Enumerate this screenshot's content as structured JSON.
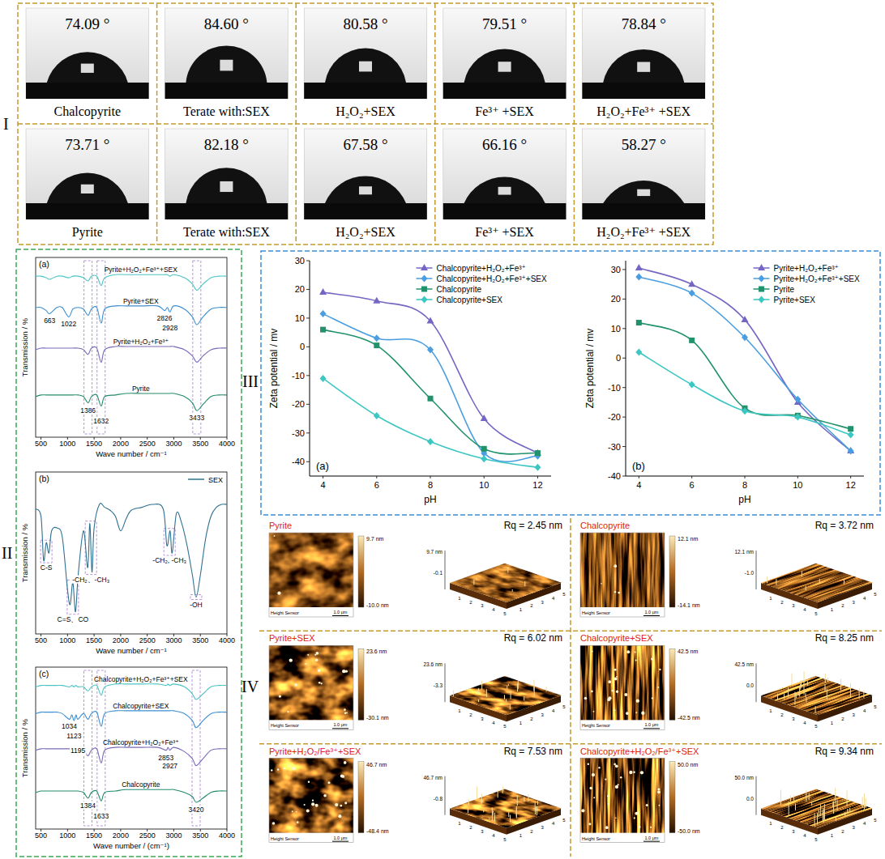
{
  "panel_labels": [
    "I",
    "II",
    "III",
    "IV"
  ],
  "contact_angle": {
    "rows": [
      [
        {
          "caption": "Chalcopyrite",
          "angle": 74.09,
          "angle_label": "74.09 °"
        },
        {
          "caption": "Terate with:SEX",
          "angle": 84.6,
          "angle_label": "84.60 °"
        },
        {
          "caption": "H₂O₂+SEX",
          "angle": 80.58,
          "angle_label": "80.58 °"
        },
        {
          "caption": "Fe³⁺ +SEX",
          "angle": 79.51,
          "angle_label": "79.51 °"
        },
        {
          "caption": "H₂O₂+Fe³⁺ +SEX",
          "angle": 78.84,
          "angle_label": "78.84 °"
        }
      ],
      [
        {
          "caption": "Pyrite",
          "angle": 73.71,
          "angle_label": "73.71 °"
        },
        {
          "caption": "Terate with:SEX",
          "angle": 82.18,
          "angle_label": "82.18 °"
        },
        {
          "caption": "H₂O₂+SEX",
          "angle": 67.58,
          "angle_label": "67.58 °"
        },
        {
          "caption": "Fe³⁺ +SEX",
          "angle": 66.16,
          "angle_label": "66.16 °"
        },
        {
          "caption": "H₂O₂+Fe³⁺ +SEX",
          "angle": 58.27,
          "angle_label": "58.27 °"
        }
      ]
    ]
  },
  "chart_data": [
    {
      "type": "line",
      "title": "(a)",
      "x_label": "Wave number / cm⁻¹",
      "y_label": "Transmission / %",
      "tick_labels": "x",
      "xlim": [
        400,
        4000
      ],
      "xticks": [
        500,
        1000,
        1500,
        2000,
        2500,
        3000,
        3500,
        4000
      ],
      "ylim": [
        -15,
        100
      ],
      "x": [
        400,
        500,
        600,
        663,
        800,
        900,
        1022,
        1100,
        1200,
        1300,
        1386,
        1450,
        1550,
        1632,
        1700,
        1900,
        2100,
        2400,
        2700,
        2826,
        2880,
        2928,
        3000,
        3200,
        3350,
        3433,
        3550,
        3700,
        3850,
        4000
      ],
      "series": [
        {
          "name": "Pyrite+H₂O₂+Fe³⁺+SEX",
          "color": "#4cc4c4",
          "values": [
            88,
            88,
            87,
            86,
            88,
            88,
            87,
            88,
            88,
            87,
            85,
            88,
            88,
            82,
            87,
            89,
            89,
            89,
            89,
            89,
            89,
            88,
            89,
            87,
            83,
            79,
            83,
            87,
            88,
            88
          ]
        },
        {
          "name": "Pyrite+SEX",
          "color": "#3d8fd1",
          "values": [
            68,
            68,
            66,
            64,
            68,
            68,
            62,
            67,
            68,
            67,
            63,
            67,
            68,
            58,
            67,
            69,
            69,
            69,
            69,
            66,
            68,
            65,
            69,
            67,
            62,
            57,
            62,
            67,
            68,
            68
          ]
        },
        {
          "name": "Pyrite+H₂O₂+Fe³⁺",
          "color": "#7a6ab8",
          "values": [
            41,
            42,
            42,
            42,
            42,
            42,
            42,
            42,
            42,
            41,
            38,
            42,
            42,
            33,
            41,
            43,
            43,
            43,
            43,
            43,
            43,
            43,
            43,
            41,
            37,
            33,
            37,
            41,
            42,
            42
          ]
        },
        {
          "name": "Pyrite",
          "color": "#238c6b",
          "values": [
            11,
            12,
            12,
            12,
            12,
            12,
            12,
            12,
            12,
            11,
            7,
            11,
            12,
            5,
            11,
            12,
            13,
            13,
            13,
            13,
            13,
            13,
            13,
            11,
            7,
            2,
            6,
            11,
            12,
            12
          ]
        }
      ],
      "annotations": [
        {
          "text": "663",
          "x": 663,
          "series": 1
        },
        {
          "text": "1022",
          "x": 1022,
          "series": 1
        },
        {
          "text": "2826",
          "x": 2826,
          "series": 1
        },
        {
          "text": "2928",
          "x": 2928,
          "series": 1
        },
        {
          "text": "1386",
          "x": 1386,
          "series": 3
        },
        {
          "text": "1632",
          "x": 1632,
          "series": 3
        },
        {
          "text": "3433",
          "x": 3433,
          "series": 3
        }
      ]
    },
    {
      "type": "line",
      "title": "(b)",
      "x_label": "Wave number / cm⁻¹",
      "y_label": "Transmission / %",
      "tick_labels": "x",
      "legend": "upper right",
      "xlim": [
        400,
        4000
      ],
      "xticks": [
        500,
        1000,
        1500,
        2000,
        2500,
        3000,
        3500,
        4000
      ],
      "ylim": [
        0,
        110
      ],
      "x": [
        400,
        500,
        550,
        600,
        650,
        700,
        800,
        900,
        1000,
        1050,
        1100,
        1150,
        1200,
        1300,
        1380,
        1420,
        1460,
        1500,
        1600,
        1700,
        1800,
        1900,
        2000,
        2100,
        2200,
        2400,
        2600,
        2800,
        2870,
        2930,
        2970,
        3050,
        3150,
        3250,
        3350,
        3420,
        3500,
        3600,
        3700,
        3800,
        3900,
        4000
      ],
      "series": [
        {
          "name": "SEX",
          "color": "#2e7191",
          "values": [
            85,
            80,
            50,
            62,
            55,
            70,
            72,
            66,
            30,
            20,
            35,
            15,
            40,
            70,
            45,
            75,
            42,
            72,
            88,
            86,
            84,
            80,
            70,
            78,
            84,
            86,
            88,
            85,
            60,
            70,
            55,
            82,
            75,
            60,
            40,
            25,
            40,
            65,
            80,
            86,
            88,
            88
          ]
        }
      ],
      "annotations": [
        {
          "text": "C-S",
          "x": 600,
          "series": 0
        },
        {
          "text": "C=S、CO",
          "x": 1100,
          "series": 0
        },
        {
          "text": "-CH₂、-CH₃",
          "x": 1440,
          "series": 0
        },
        {
          "text": "-CH₂, -CH₃",
          "x": 2920,
          "series": 0
        },
        {
          "text": "-OH",
          "x": 3420,
          "series": 0
        }
      ]
    },
    {
      "type": "line",
      "title": "(c)",
      "x_label": "Wave number / (cm⁻¹)",
      "y_label": "Transmission / %",
      "tick_labels": "x",
      "xlim": [
        400,
        4000
      ],
      "xticks": [
        500,
        1000,
        1500,
        2000,
        2500,
        3000,
        3500,
        4000
      ],
      "ylim": [
        -15,
        100
      ],
      "x": [
        400,
        500,
        600,
        700,
        800,
        900,
        1034,
        1080,
        1123,
        1160,
        1195,
        1300,
        1384,
        1450,
        1550,
        1633,
        1700,
        1900,
        2100,
        2400,
        2700,
        2853,
        2890,
        2927,
        3000,
        3200,
        3350,
        3420,
        3550,
        3700,
        3850,
        4000
      ],
      "series": [
        {
          "name": "Chalcopyrite+H₂O₂+Fe³⁺+SEX",
          "color": "#4cc4c4",
          "values": [
            86,
            87,
            87,
            87,
            87,
            87,
            86,
            87,
            86,
            87,
            86,
            86,
            83,
            86,
            87,
            80,
            86,
            88,
            88,
            88,
            88,
            87,
            88,
            87,
            88,
            86,
            81,
            77,
            81,
            86,
            87,
            87
          ]
        },
        {
          "name": "Chalcopyrite+SEX",
          "color": "#3d8fd1",
          "values": [
            67,
            68,
            68,
            68,
            68,
            67,
            63,
            66,
            62,
            66,
            63,
            67,
            63,
            67,
            68,
            58,
            67,
            69,
            69,
            69,
            69,
            69,
            69,
            69,
            69,
            67,
            62,
            57,
            62,
            67,
            68,
            68
          ]
        },
        {
          "name": "Chalcopyrite+H₂O₂+Fe³⁺",
          "color": "#7a6ab8",
          "values": [
            41,
            42,
            42,
            42,
            42,
            42,
            42,
            42,
            42,
            42,
            42,
            41,
            37,
            41,
            42,
            32,
            41,
            43,
            43,
            43,
            43,
            41,
            43,
            41,
            43,
            40,
            35,
            30,
            35,
            41,
            42,
            42
          ]
        },
        {
          "name": "Chalcopyrite",
          "color": "#238c6b",
          "values": [
            11,
            12,
            12,
            12,
            12,
            12,
            12,
            12,
            12,
            12,
            12,
            11,
            7,
            11,
            12,
            5,
            11,
            12,
            13,
            13,
            13,
            13,
            13,
            13,
            13,
            11,
            8,
            4,
            7,
            11,
            12,
            12
          ]
        }
      ],
      "annotations": [
        {
          "text": "1034",
          "x": 1034,
          "series": 1
        },
        {
          "text": "1123",
          "x": 1123,
          "series": 1
        },
        {
          "text": "1195",
          "x": 1195,
          "series": 1
        },
        {
          "text": "2853",
          "x": 2853,
          "series": 2
        },
        {
          "text": "2927",
          "x": 2927,
          "series": 2
        },
        {
          "text": "1384",
          "x": 1384,
          "series": 3
        },
        {
          "text": "1633",
          "x": 1633,
          "series": 3
        },
        {
          "text": "3420",
          "x": 3420,
          "series": 3
        }
      ]
    },
    {
      "type": "line",
      "title": "(a)",
      "x_label": "pH",
      "y_label": "Zeta potential / mv",
      "legend": "upper right",
      "xlim": [
        3.5,
        12.5
      ],
      "xticks": [
        4,
        6,
        8,
        10,
        12
      ],
      "ylim": [
        -45,
        30
      ],
      "yticks": [
        -40,
        -30,
        -20,
        -10,
        0,
        10,
        20,
        30
      ],
      "x": [
        4,
        6,
        8,
        10,
        12
      ],
      "series": [
        {
          "name": "Chalcopyrite+H₂O₂+Fe³⁺",
          "color": "#7467c4",
          "marker": "triangle",
          "values": [
            19,
            16,
            9,
            -25,
            -37
          ]
        },
        {
          "name": "Chalcopyrite+H₂O₂+Fe³⁺+SEX",
          "color": "#4a9ee0",
          "marker": "diamond",
          "values": [
            11.5,
            3,
            -1,
            -37,
            -38
          ]
        },
        {
          "name": "Chalcopyrite",
          "color": "#21926b",
          "marker": "square",
          "values": [
            6,
            0.5,
            -18,
            -35.5,
            -37
          ]
        },
        {
          "name": "Chalcopyrite+SEX",
          "color": "#3cc7c2",
          "marker": "diamond",
          "values": [
            -11,
            -24,
            -33,
            -39,
            -42
          ]
        }
      ]
    },
    {
      "type": "line",
      "title": "(b)",
      "x_label": "pH",
      "y_label": "Zeta potential / mv",
      "legend": "upper right",
      "xlim": [
        3.5,
        12.5
      ],
      "xticks": [
        4,
        6,
        8,
        10,
        12
      ],
      "ylim": [
        -40,
        33
      ],
      "yticks": [
        -40,
        -30,
        -20,
        -10,
        0,
        10,
        20,
        30
      ],
      "x": [
        4,
        6,
        8,
        10,
        12
      ],
      "series": [
        {
          "name": "Pyrite+H₂O₂+Fe³⁺",
          "color": "#7467c4",
          "marker": "triangle",
          "values": [
            30.5,
            25,
            13,
            -15,
            -31.5
          ]
        },
        {
          "name": "Pyrite+H₂O₂+Fe³⁺+SEX",
          "color": "#4a9ee0",
          "marker": "diamond",
          "values": [
            27.5,
            22,
            7,
            -14,
            -31.5
          ]
        },
        {
          "name": "Pyrite",
          "color": "#21926b",
          "marker": "square",
          "values": [
            12,
            6,
            -17,
            -19.5,
            -24
          ]
        },
        {
          "name": "Pyrite+SEX",
          "color": "#3cc7c2",
          "marker": "diamond",
          "values": [
            2,
            -9,
            -18,
            -20,
            -26
          ]
        }
      ]
    }
  ],
  "afm": {
    "sensor_label": "Height Sensor",
    "scale_bar": "1.0 μm",
    "axis_ticks_3d": [
      1,
      2,
      3,
      4,
      5
    ],
    "columns": [
      [
        {
          "title": "Pyrite",
          "rq": 2.45,
          "rq_label": "Rq = 2.45 nm",
          "cb_max": "9.7 nm",
          "cb_min": "-10.0 nm",
          "z_mid": "-0.1"
        },
        {
          "title": "Pyrite+SEX",
          "rq": 6.02,
          "rq_label": "Rq = 6.02 nm",
          "cb_max": "23.6 nm",
          "cb_min": "-30.1 nm",
          "z_mid": "-3.3"
        },
        {
          "title": "Pyrite+H₂O₂/Fe³⁺+SEX",
          "rq": 7.53,
          "rq_label": "Rq = 7.53 nm",
          "cb_max": "46.7 nm",
          "cb_min": "-48.4 nm",
          "z_mid": "-0.8"
        }
      ],
      [
        {
          "title": "Chalcopyrite",
          "rq": 3.72,
          "rq_label": "Rq = 3.72 nm",
          "cb_max": "12.1 nm",
          "cb_min": "-14.1 nm",
          "z_mid": "-1.0"
        },
        {
          "title": "Chalcopyrite+SEX",
          "rq": 8.25,
          "rq_label": "Rq = 8.25 nm",
          "cb_max": "42.5 nm",
          "cb_min": "-42.5 nm",
          "z_mid": "0.0"
        },
        {
          "title": "Chalcopyrite+H₂O₂/Fe³⁺+SEX",
          "rq": 9.34,
          "rq_label": "Rq = 9.34 nm",
          "cb_max": "50.0 nm",
          "cb_min": "-50.0 nm",
          "z_mid": "0.0"
        }
      ]
    ]
  }
}
